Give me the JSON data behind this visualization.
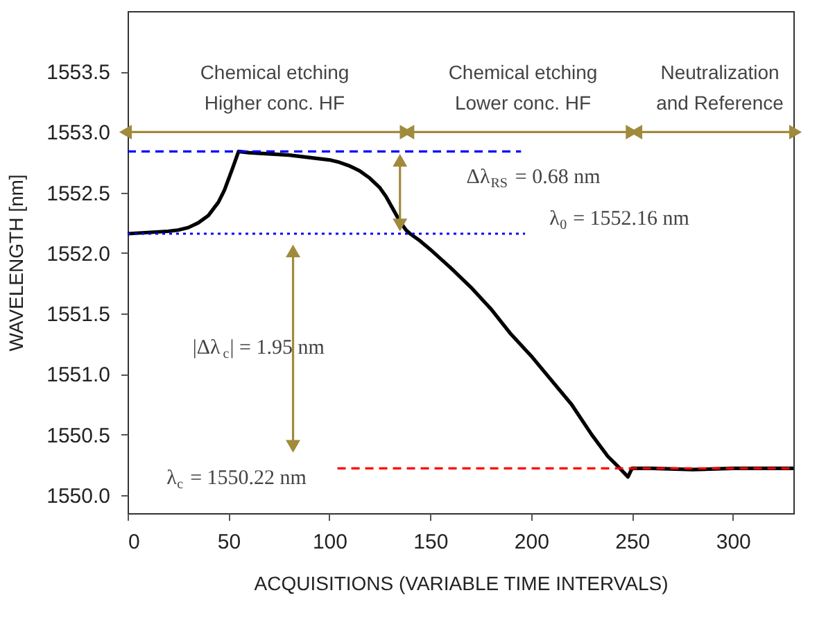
{
  "chart_data": {
    "type": "line",
    "xlabel": "ACQUISITIONS (VARIABLE TIME INTERVALS)",
    "ylabel": "WAVELENGTH [nm]",
    "xlim": [
      0,
      330
    ],
    "xticks": [
      0,
      50,
      100,
      150,
      200,
      250,
      300
    ],
    "ylim": [
      1549.85,
      1554.0
    ],
    "yticks": [
      {
        "value": 1550,
        "label": "1550.0"
      },
      1550.5,
      {
        "value": 1551,
        "label": "1551.0"
      },
      1551.5,
      {
        "value": 1552,
        "label": "1552.0"
      },
      1552.5,
      {
        "value": 1553,
        "label": "1553.0"
      },
      1553.5
    ],
    "grid": false,
    "marker": "none",
    "line_style": "solid",
    "series": [
      {
        "color": "#000000",
        "x": [
          0,
          10,
          20,
          25,
          30,
          35,
          40,
          45,
          48,
          52,
          55,
          60,
          70,
          80,
          90,
          100,
          105,
          110,
          115,
          120,
          125,
          128,
          131,
          135,
          138,
          140,
          145,
          150,
          160,
          170,
          180,
          190,
          200,
          210,
          220,
          230,
          238,
          244,
          248,
          250,
          260,
          280,
          300,
          330
        ],
        "values": [
          1552.16,
          1552.17,
          1552.18,
          1552.19,
          1552.21,
          1552.25,
          1552.31,
          1552.42,
          1552.52,
          1552.7,
          1552.84,
          1552.83,
          1552.82,
          1552.81,
          1552.79,
          1552.77,
          1552.75,
          1552.72,
          1552.68,
          1552.62,
          1552.54,
          1552.47,
          1552.38,
          1552.26,
          1552.19,
          1552.16,
          1552.1,
          1552.03,
          1551.88,
          1551.72,
          1551.54,
          1551.33,
          1551.15,
          1550.95,
          1550.75,
          1550.5,
          1550.32,
          1550.22,
          1550.15,
          1550.22,
          1550.22,
          1550.21,
          1550.22,
          1550.22
        ]
      },
      {
        "color": "#0000ff",
        "line_style": "dashed",
        "x": [
          0,
          195
        ],
        "values": [
          1552.84,
          1552.84
        ]
      },
      {
        "color": "#0000ff",
        "line_style": "dotted",
        "x": [
          0,
          197
        ],
        "values": [
          1552.16,
          1552.16
        ]
      },
      {
        "color": "#ff0000",
        "line_style": "dashed",
        "x": [
          104,
          330
        ],
        "values": [
          1550.22,
          1550.22
        ]
      },
      {
        "color": "#a08a3c",
        "marker": "triangle",
        "x": [
          0,
          137
        ],
        "values": [
          1553.0,
          1553.0
        ]
      },
      {
        "color": "#a08a3c",
        "marker": "triangle",
        "x": [
          140,
          249
        ],
        "values": [
          1553.0,
          1553.0
        ]
      },
      {
        "color": "#a08a3c",
        "marker": "triangle",
        "x": [
          253,
          330
        ],
        "values": [
          1553.0,
          1553.0
        ]
      },
      {
        "color": "#a08a3c",
        "marker": "triangle",
        "x": [
          135,
          135
        ],
        "values": [
          1552.75,
          1552.25
        ]
      },
      {
        "color": "#a08a3c",
        "marker": "triangle",
        "x": [
          82,
          82
        ],
        "values": [
          1552.0,
          1550.42
        ]
      }
    ],
    "annotations": [
      "Chemical etching\nHigher conc. HF",
      "Chemical etching\nLower conc. HF",
      "Neutralization\nand Reference",
      "Δλ$_{RS}$ = 0.68 nm",
      "λ$_{0}$ = 1552.16 nm",
      "|Δλ$_{c}$| = 1.95 nm",
      "λ$_{c}$ = 1550.22 nm"
    ]
  }
}
